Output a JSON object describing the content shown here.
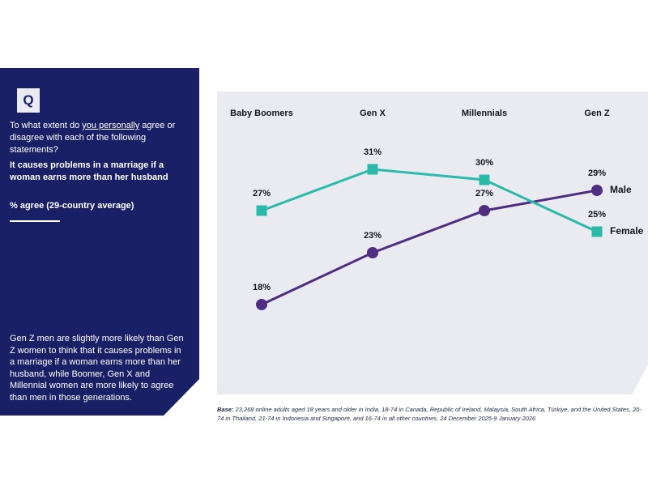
{
  "sidebar": {
    "q_label": "Q",
    "question": {
      "prefix": "To what extent do ",
      "underlined": "you personally",
      "suffix": " agree or disagree with each of the following statements?"
    },
    "statement": "It causes problems in a marriage if a woman earns more than her husband",
    "measure": "% agree (29-country average)",
    "insight": "Gen Z men are slightly more likely than Gen Z women to think that it causes problems in a marriage if a woman earns more than her husband, while Boomer, Gen X and Millennial women are more likely to agree than men in those generations."
  },
  "chart_data": {
    "type": "line",
    "categories": [
      "Baby Boomers",
      "Gen X",
      "Millennials",
      "Gen Z"
    ],
    "series": [
      {
        "name": "Male",
        "marker": "circle",
        "color": "#4f2d80",
        "values": [
          18,
          23,
          27,
          29
        ]
      },
      {
        "name": "Female",
        "marker": "square",
        "color": "#2bb9a9",
        "values": [
          27,
          31,
          30,
          25
        ]
      }
    ],
    "value_suffix": "%",
    "ylim": [
      14,
      36
    ],
    "grid": false,
    "legend_position": "end-of-line",
    "background": "#e9ebf1"
  },
  "footer": {
    "label": "Base:",
    "line1": " 23,268 online adults aged 18 years and older in India, 18-74 in Canada, Republic of Ireland, Malaysia, South Africa, Türkiye, and the United States, 20-",
    "line2": "74 in Thailand, 21-74 in Indonesia and Singapore, and 16-74 in all other countries, 24 December 2025-9 January 2026"
  },
  "colors": {
    "navy": "#1a2065",
    "teal": "#2bb9a9",
    "purple": "#4f2d80",
    "panel_bg": "#e9ebf1"
  }
}
